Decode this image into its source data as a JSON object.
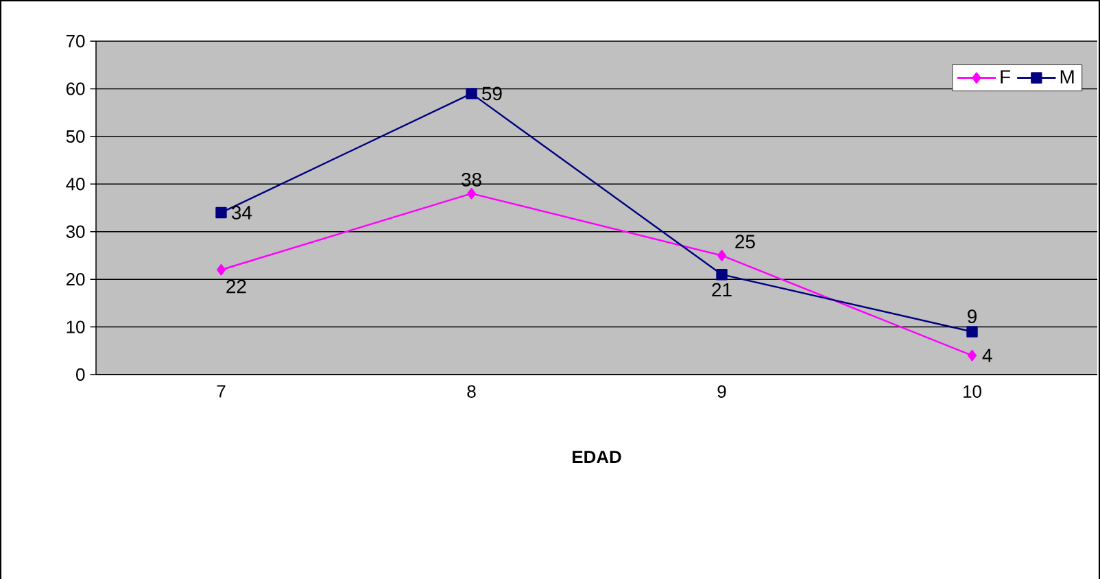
{
  "chart_data": {
    "type": "line",
    "xlabel": "EDAD",
    "categories": [
      "7",
      "8",
      "9",
      "10"
    ],
    "series": [
      {
        "name": "F",
        "color": "#ff00ff",
        "marker": "diamond",
        "values": [
          22,
          38,
          25,
          4
        ]
      },
      {
        "name": "M",
        "color": "#000080",
        "marker": "square",
        "values": [
          34,
          59,
          21,
          9
        ]
      }
    ],
    "ylim": [
      0,
      70
    ],
    "yticks": [
      0,
      10,
      20,
      30,
      40,
      50,
      60,
      70
    ],
    "grid": "y",
    "legend": "top right",
    "data_labels": true
  }
}
